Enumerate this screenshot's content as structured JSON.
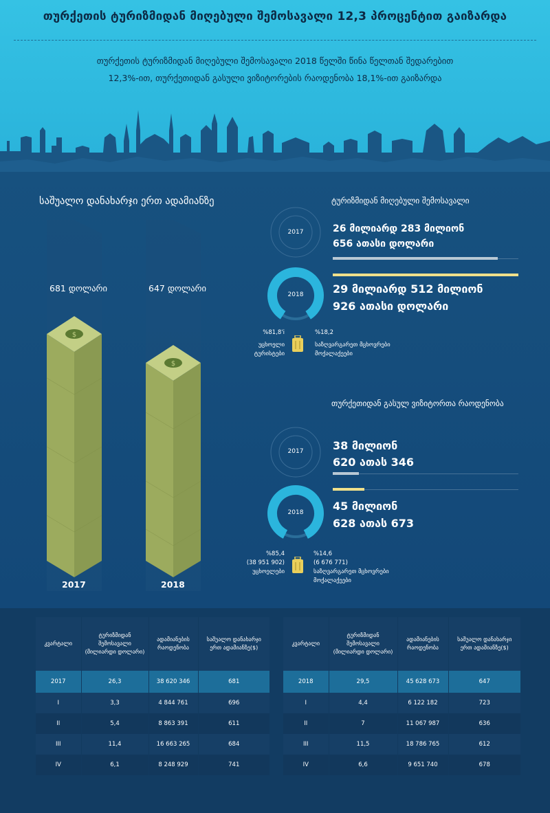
{
  "title": "თურქეთის ტურიზმიდან მიღებული შემოსავალი 12,3 პროცენტით გაიზარდა",
  "subtitle_line1": "თურქეთის ტურიზმიდან მიღებული შემოსავალი 2018 წელში წინა წელთან შედარებით",
  "subtitle_line2": "12,3%-ით, თურქეთიდან გასული ვიზიტორების რაოდენობა 18,1%-ით გაიზარდა",
  "spending": {
    "heading": "საშუალო დანახარჯი ერთ ადამიანზე",
    "y2017_label": "681 დოლარი",
    "y2018_label": "647 დოლარი",
    "y2017": "2017",
    "y2018": "2018",
    "values": [
      681,
      647
    ]
  },
  "revenue": {
    "heading": "ტურიზმიდან მიღებული შემოსავალი",
    "ring2017": "2017",
    "ring2018": "2018",
    "v2017_line1": "26 მილიარდ 283 მილიონ",
    "v2017_line2": "656 ათასი დოლარი",
    "v2018_line1": "29 მილიარდ 512 მილიონ",
    "v2018_line2": "926 ათასი დოლარი",
    "foreign_pct": "%81,8'i",
    "foreign_label_1": "უცხოელი",
    "foreign_label_2": "ტურისტები",
    "abroad_pct": "%18,2",
    "abroad_label_1": "საზღვარგარეთ მცხოვრები",
    "abroad_label_2": "მოქალაქეები",
    "foreign_share": 81.8,
    "bar_2017": 0.89,
    "bar_2018": 1.0
  },
  "visitors": {
    "heading": "თურქეთიდან გასულ ვიზიტორთა რაოდენობა",
    "ring2017": "2017",
    "ring2018": "2018",
    "v2017_line1": "38 მილიონ",
    "v2017_line2": "620 ათას 346",
    "v2018_line1": "45 მილიონ",
    "v2018_line2": "628 ათას 673",
    "foreign_pct": "%85,4",
    "foreign_count": "(38 951 902)",
    "foreign_label": "უცხოელები",
    "abroad_pct": "%14,6",
    "abroad_count": "(6 676 771)",
    "abroad_label_1": "საზღვარგარეთ მცხოვრები",
    "abroad_label_2": "მოქალაქეები",
    "foreign_share": 85.4,
    "bar_2017": 0.14,
    "bar_2018": 0.17
  },
  "colors": {
    "sky": "#35c2e4",
    "navy": "#12406a",
    "ring": "#2bb5dd",
    "money": "#a7b66a",
    "bar2017": "#b8c8d4",
    "bar2018": "#f0e08a"
  },
  "table_headers": {
    "quarter": "კვარტალი",
    "revenue": "ტურიზმიდან შემოსავალი (მილიარდი დოლარი)",
    "people": "ადამიანების რაოდენობა",
    "avg": "საშუალო დანახარჯი ერთ ადამიანზე($)"
  },
  "table2017": {
    "total": [
      "2017",
      "26,3",
      "38 620 346",
      "681"
    ],
    "rows": [
      [
        "I",
        "3,3",
        "4 844 761",
        "696"
      ],
      [
        "II",
        "5,4",
        "8 863 391",
        "611"
      ],
      [
        "III",
        "11,4",
        "16 663 265",
        "684"
      ],
      [
        "IV",
        "6,1",
        "8 248 929",
        "741"
      ]
    ]
  },
  "table2018": {
    "total": [
      "2018",
      "29,5",
      "45 628 673",
      "647"
    ],
    "rows": [
      [
        "I",
        "4,4",
        "6 122 182",
        "723"
      ],
      [
        "II",
        "7",
        "11 067 987",
        "636"
      ],
      [
        "III",
        "11,5",
        "18 786 765",
        "612"
      ],
      [
        "IV",
        "6,6",
        "9 651 740",
        "678"
      ]
    ]
  }
}
